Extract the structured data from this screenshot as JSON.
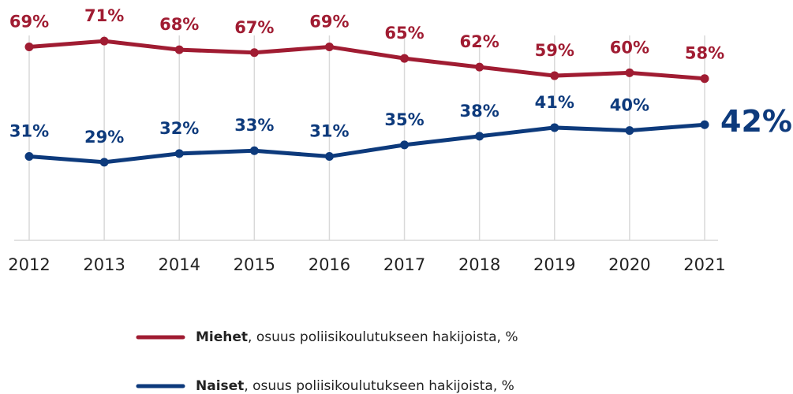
{
  "chart_data": {
    "type": "line",
    "categories": [
      "2012",
      "2013",
      "2014",
      "2015",
      "2016",
      "2017",
      "2018",
      "2019",
      "2020",
      "2021"
    ],
    "series": [
      {
        "name": "Miehet",
        "description": ", osuus poliisikoulutukseen hakijoista, %",
        "color": "#a01c32",
        "values": [
          69,
          71,
          68,
          67,
          69,
          65,
          62,
          59,
          60,
          58
        ],
        "value_labels": [
          "69%",
          "71%",
          "68%",
          "67%",
          "69%",
          "65%",
          "62%",
          "59%",
          "60%",
          "58%"
        ]
      },
      {
        "name": "Naiset",
        "description": ", osuus poliisikoulutukseen hakijoista, %",
        "color": "#0d3a7c",
        "values": [
          31,
          29,
          32,
          33,
          31,
          35,
          38,
          41,
          40,
          42
        ],
        "value_labels": [
          "31%",
          "29%",
          "32%",
          "33%",
          "31%",
          "35%",
          "38%",
          "41%",
          "40%",
          "42%"
        ]
      }
    ],
    "ylim": [
      0,
      75
    ],
    "grid": true
  }
}
